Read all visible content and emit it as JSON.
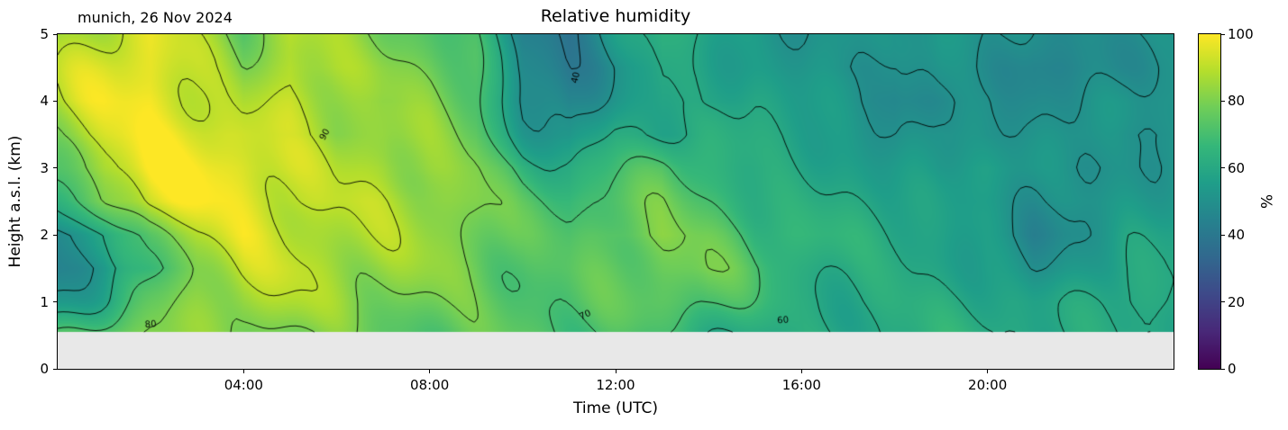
{
  "header": {
    "title": "Relative humidity",
    "annotation": "munich, 26 Nov 2024"
  },
  "axes": {
    "x": {
      "label": "Time (UTC)",
      "tick_labels": [
        "04:00",
        "08:00",
        "12:00",
        "16:00",
        "20:00"
      ],
      "tick_hours": [
        4,
        8,
        12,
        16,
        20
      ],
      "range_hours": [
        0,
        24
      ]
    },
    "y": {
      "label": "Height a.s.l. (km)",
      "tick_labels": [
        "0",
        "1",
        "2",
        "3",
        "4",
        "5"
      ],
      "tick_km": [
        0,
        1,
        2,
        3,
        4,
        5
      ],
      "range_km": [
        0,
        5
      ]
    }
  },
  "colorbar": {
    "label": "%",
    "tick_labels": [
      "0",
      "20",
      "40",
      "60",
      "80",
      "100"
    ],
    "tick_values": [
      0,
      20,
      40,
      60,
      80,
      100
    ],
    "range": [
      0,
      100
    ]
  },
  "chart_data": {
    "type": "heatmap",
    "title": "Relative humidity",
    "xlabel": "Time (UTC)",
    "ylabel": "Height a.s.l. (km)",
    "unit": "%",
    "x_hours": [
      0,
      1,
      2,
      3,
      4,
      5,
      6,
      7,
      8,
      9,
      10,
      11,
      12,
      13,
      14,
      15,
      16,
      17,
      18,
      19,
      20,
      21,
      22,
      23,
      24
    ],
    "heights_km": [
      0.55,
      1.0,
      1.5,
      2.0,
      2.5,
      3.0,
      3.5,
      4.0,
      4.5,
      5.0
    ],
    "values_percent": [
      [
        70,
        76,
        80,
        79,
        81,
        80,
        79,
        77,
        76,
        75,
        73,
        71,
        69,
        67,
        65,
        62,
        60,
        61,
        62,
        62,
        61,
        59,
        60,
        61,
        61
      ],
      [
        55,
        62,
        74,
        82,
        87,
        85,
        83,
        81,
        79,
        77,
        75,
        73,
        72,
        74,
        73,
        66,
        62,
        62,
        63,
        62,
        60,
        56,
        58,
        61,
        61
      ],
      [
        46,
        52,
        68,
        85,
        92,
        90,
        86,
        83,
        81,
        79,
        74,
        73,
        76,
        79,
        78,
        69,
        63,
        61,
        62,
        60,
        58,
        49,
        53,
        59,
        59
      ],
      [
        44,
        55,
        78,
        90,
        96,
        92,
        89,
        86,
        83,
        80,
        73,
        71,
        79,
        82,
        77,
        68,
        65,
        62,
        60,
        58,
        55,
        46,
        51,
        58,
        58
      ],
      [
        60,
        80,
        95,
        97,
        96,
        94,
        91,
        89,
        86,
        81,
        70,
        68,
        74,
        78,
        72,
        66,
        62,
        60,
        58,
        55,
        53,
        50,
        53,
        55,
        55
      ],
      [
        75,
        90,
        99,
        98,
        96,
        92,
        87,
        89,
        86,
        80,
        66,
        61,
        66,
        72,
        66,
        62,
        60,
        58,
        55,
        53,
        55,
        52,
        50,
        51,
        52
      ],
      [
        85,
        94,
        100,
        98,
        93,
        88,
        83,
        86,
        83,
        77,
        57,
        50,
        61,
        59,
        61,
        60,
        58,
        55,
        50,
        55,
        51,
        50,
        52,
        49,
        50
      ],
      [
        89,
        96,
        100,
        94,
        86,
        91,
        86,
        81,
        80,
        74,
        50,
        44,
        55,
        61,
        56,
        58,
        55,
        52,
        46,
        50,
        52,
        48,
        50,
        52,
        50
      ],
      [
        87,
        94,
        98,
        90,
        80,
        92,
        88,
        82,
        78,
        71,
        46,
        40,
        51,
        62,
        58,
        55,
        52,
        50,
        47,
        52,
        50,
        45,
        48,
        50,
        50
      ],
      [
        84,
        90,
        95,
        86,
        76,
        90,
        86,
        80,
        75,
        68,
        44,
        38,
        54,
        64,
        60,
        55,
        50,
        54,
        49,
        54,
        50,
        47,
        50,
        52,
        50
      ]
    ],
    "contour_levels": [
      40,
      50,
      60,
      70,
      80,
      90
    ],
    "contour_labels": [
      {
        "text": "80",
        "t_hours": 2.0,
        "km": 0.66,
        "rotation_deg": -5
      },
      {
        "text": "90",
        "t_hours": 5.75,
        "km": 3.5,
        "rotation_deg": -60
      },
      {
        "text": "40",
        "t_hours": 11.15,
        "km": 4.35,
        "rotation_deg": -78
      },
      {
        "text": "70",
        "t_hours": 11.35,
        "km": 0.8,
        "rotation_deg": -25
      },
      {
        "text": "60",
        "t_hours": 15.6,
        "km": 0.72,
        "rotation_deg": -5
      }
    ],
    "no_data_below_km": 0.55,
    "no_data_color": "#e8e8e8",
    "colormap": "viridis",
    "colormap_stops": [
      "#440154",
      "#482878",
      "#3e4989",
      "#31688e",
      "#26828e",
      "#1f9e89",
      "#35b779",
      "#6dcd59",
      "#b4de2c",
      "#fde725"
    ]
  }
}
